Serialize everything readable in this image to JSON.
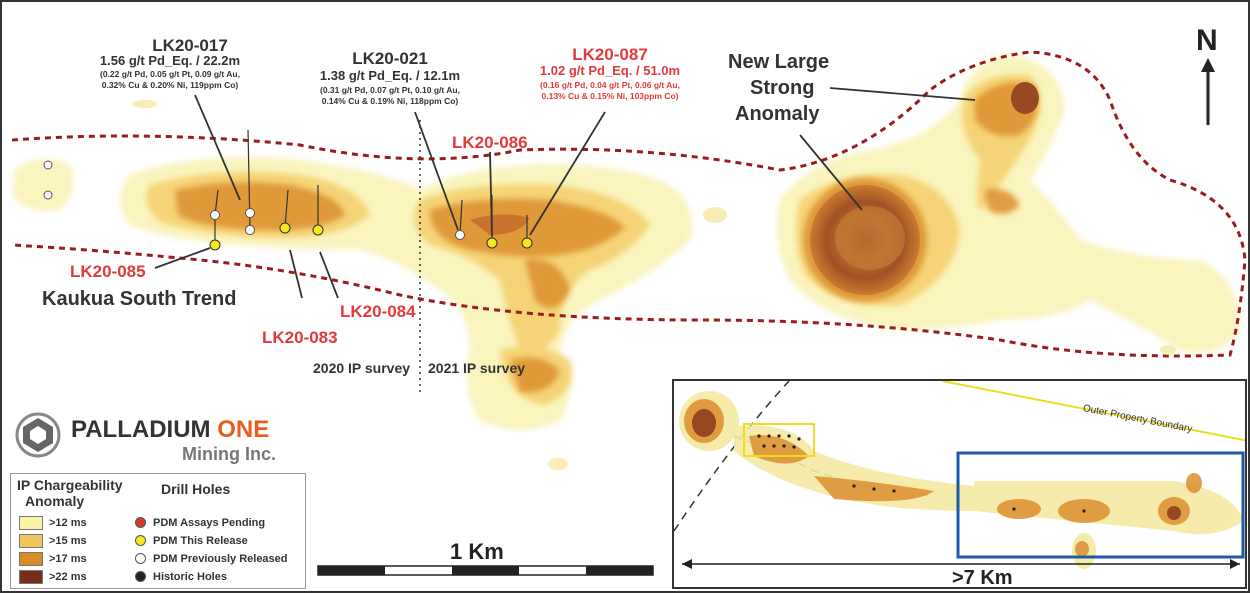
{
  "drill_holes": {
    "lk20_017": {
      "id": "LK20-017",
      "grade": "1.56 g/t Pd_Eq. / 22.2m",
      "detail_1": "(0.22 g/t Pd, 0.05 g/t Pt, 0.09 g/t Au,",
      "detail_2": "0.32% Cu & 0.20% Ni, 119ppm Co)"
    },
    "lk20_021": {
      "id": "LK20-021",
      "grade": "1.38 g/t Pd_Eq. / 12.1m",
      "detail_1": "(0.31 g/t Pd, 0.07 g/t Pt, 0.10 g/t Au,",
      "detail_2": "0.14% Cu & 0.19% Ni, 118ppm Co)"
    },
    "lk20_087": {
      "id": "LK20-087",
      "grade": "1.02 g/t Pd_Eq. / 51.0m",
      "detail_1": "(0.16 g/t Pd, 0.04 g/t Pt, 0.06 g/t Au,",
      "detail_2": "0.13% Cu & 0.15% Ni, 103ppm Co)"
    },
    "lk20_086": "LK20-086",
    "lk20_085": "LK20-085",
    "lk20_083": "LK20-083",
    "lk20_084": "LK20-084"
  },
  "labels": {
    "trend": "Kaukua South Trend",
    "anomaly_1": "New Large",
    "anomaly_2": "Strong",
    "anomaly_3": "Anomaly",
    "survey_2020": "2020 IP survey",
    "survey_2021": "2021 IP survey",
    "north": "N",
    "scale_1km": "1 Km",
    "scale_7km": ">7 Km",
    "outer_boundary": "Outer Property Boundary"
  },
  "logo": {
    "name_1": "PALLADIUM",
    "name_2": "ONE",
    "sub": "Mining Inc."
  },
  "legend": {
    "anomaly_title_1": "IP Chargeability",
    "anomaly_title_2": "Anomaly",
    "holes_title": "Drill Holes",
    "anomaly_items": [
      {
        "label": ">12 ms",
        "color": "#fbf3a8"
      },
      {
        "label": ">15 ms",
        "color": "#f2c65a"
      },
      {
        "label": ">17 ms",
        "color": "#d98a28"
      },
      {
        "label": ">22 ms",
        "color": "#7a2e1c"
      }
    ],
    "hole_items": [
      {
        "label": "PDM Assays Pending",
        "color": "#d63a2e"
      },
      {
        "label": "PDM This Release",
        "color": "#f7e81d"
      },
      {
        "label": "PDM Previously Released",
        "color": "#ffffff"
      },
      {
        "label": "Historic Holes",
        "color": "#222222"
      }
    ]
  },
  "colors": {
    "trend_line": "#9b1c1c",
    "highlight_red": "#e03a3a",
    "inset_frame": "#1f5aa8",
    "boundary": "#f0dc1f"
  }
}
